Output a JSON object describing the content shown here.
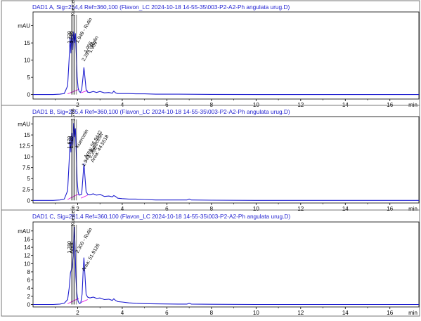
{
  "chart_data": [
    {
      "type": "line",
      "title": "DAD1 A, Sig=254,4 Ref=360,100 (Flavon_LC 2024-10-18 14-55-35\\003-P2-A2-Ph angulata urug.D)",
      "ylabel": "mAU",
      "xunit": "min",
      "xlim": [
        0,
        17.3
      ],
      "ylim": [
        -1.3,
        24
      ],
      "yticks": [
        0,
        5,
        10,
        15,
        20
      ],
      "xticks": [
        2,
        4,
        6,
        8,
        10,
        12,
        14,
        16
      ],
      "series": [
        {
          "x": [
            0,
            0.5,
            0.9,
            1.2,
            1.4,
            1.55,
            1.62,
            1.66,
            1.7,
            1.73,
            1.78,
            1.82,
            1.86,
            1.9,
            1.94,
            1.98,
            2.02,
            2.06,
            2.12,
            2.18,
            2.24,
            2.28,
            2.32,
            2.38,
            2.45,
            2.55,
            2.7,
            2.85,
            3.0,
            3.2,
            3.4,
            3.55,
            3.62,
            3.7,
            3.8,
            4.0,
            4.3,
            4.6,
            5.0,
            5.5,
            6.5,
            8,
            10,
            12,
            14,
            17.3
          ],
          "y": [
            0,
            0,
            0,
            0.1,
            0.3,
            2.5,
            10.5,
            16.5,
            12,
            17.5,
            13,
            18.3,
            15,
            17.8,
            11.5,
            5,
            2,
            1,
            0.6,
            1.4,
            5,
            7.9,
            5.5,
            1.5,
            0.7,
            0.6,
            0.9,
            0.6,
            0.9,
            0.5,
            0.6,
            0.4,
            1,
            0.5,
            0.3,
            0.3,
            0.3,
            0.2,
            0.2,
            0.1,
            0.1,
            0.05,
            0,
            0,
            0,
            0
          ]
        }
      ],
      "annotations": [
        "1.720",
        "1.786",
        "Kuercetin",
        "1.949 - Rutin",
        "2.297 - Rutin",
        "1.955",
        "1.966"
      ]
    },
    {
      "type": "line",
      "title": "DAD1 B, Sig=265,4 Ref=360,100 (Flavon_LC 2024-10-18 14-55-35\\003-P2-A2-Ph angulata urug.D)",
      "ylabel": "mAU",
      "xunit": "min",
      "xlim": [
        0,
        17.3
      ],
      "ylim": [
        -0.6,
        19.2
      ],
      "yticks": [
        0,
        2.5,
        5,
        7.5,
        10,
        12.5,
        15,
        17.5
      ],
      "xticks": [
        2,
        4,
        6,
        8,
        10,
        12,
        14,
        16
      ],
      "series": [
        {
          "x": [
            0,
            0.5,
            0.9,
            1.2,
            1.4,
            1.55,
            1.62,
            1.66,
            1.7,
            1.74,
            1.78,
            1.82,
            1.86,
            1.9,
            1.94,
            1.98,
            2.02,
            2.06,
            2.12,
            2.18,
            2.24,
            2.28,
            2.32,
            2.38,
            2.45,
            2.55,
            2.7,
            2.85,
            3.0,
            3.2,
            3.4,
            3.55,
            3.62,
            3.7,
            3.8,
            4.0,
            4.3,
            4.6,
            5.0,
            5.5,
            6.5,
            6.9,
            7.0,
            7.1,
            8,
            10,
            12,
            14,
            17.3
          ],
          "y": [
            0,
            0,
            0,
            0.1,
            0.3,
            2.2,
            9,
            14.5,
            11,
            15.5,
            12.5,
            17.7,
            14.5,
            16.5,
            10.5,
            4.5,
            2,
            1.2,
            1.3,
            1.4,
            5.5,
            8.5,
            6,
            2,
            1.4,
            1.3,
            1.5,
            1.2,
            1.4,
            0.9,
            1,
            0.8,
            1.1,
            0.9,
            0.5,
            0.4,
            0.3,
            0.3,
            0.2,
            0.1,
            0.1,
            0.1,
            0.3,
            0.1,
            0.05,
            0,
            0,
            0,
            0
          ]
        }
      ],
      "annotations": [
        "1.670",
        "1.720",
        "1.786",
        "Kuercetin",
        "1.949 - Kuercetin",
        "Area: 56.9442",
        "2.298 -",
        "Area: 44.5518"
      ]
    },
    {
      "type": "line",
      "title": "DAD1 C, Sig=281,4 Ref=360,100 (Flavon_LC 2024-10-18 14-55-35\\003-P2-A2-Ph angulata urug.D)",
      "ylabel": "mAU",
      "xunit": "min",
      "xlim": [
        0,
        17.3
      ],
      "ylim": [
        -0.6,
        20.2
      ],
      "yticks": [
        0,
        2,
        4,
        6,
        8,
        10,
        12,
        14,
        16,
        18
      ],
      "xticks": [
        2,
        4,
        6,
        8,
        10,
        12,
        14,
        16
      ],
      "series": [
        {
          "x": [
            0,
            0.5,
            0.9,
            1.2,
            1.4,
            1.55,
            1.62,
            1.68,
            1.75,
            1.8,
            1.85,
            1.88,
            1.92,
            1.96,
            2.02,
            2.08,
            2.14,
            2.2,
            2.25,
            2.28,
            2.32,
            2.38,
            2.45,
            2.55,
            2.7,
            2.85,
            3.0,
            3.2,
            3.4,
            3.55,
            3.62,
            3.7,
            3.8,
            4.0,
            4.3,
            4.6,
            5.0,
            5.5,
            6.5,
            6.9,
            7.0,
            7.1,
            8,
            10,
            12,
            14,
            17.3
          ],
          "y": [
            0,
            0,
            0,
            0.1,
            0.3,
            1.2,
            4,
            7.8,
            9,
            12,
            19,
            15,
            7,
            3,
            0.8,
            0.2,
            0.4,
            2.5,
            8.5,
            11.5,
            8,
            2.5,
            1.8,
            1.6,
            1.8,
            1.5,
            1.6,
            1.2,
            1.3,
            1,
            1.4,
            1,
            0.7,
            0.6,
            0.4,
            0.3,
            0.2,
            0.15,
            0.1,
            0.1,
            0.3,
            0.1,
            0.05,
            0,
            0,
            0,
            0
          ]
        }
      ],
      "annotations": [
        "1.780",
        "Area:",
        "Kuercetin",
        "2.300 - Rutin",
        "Area: 51.9126"
      ]
    }
  ]
}
